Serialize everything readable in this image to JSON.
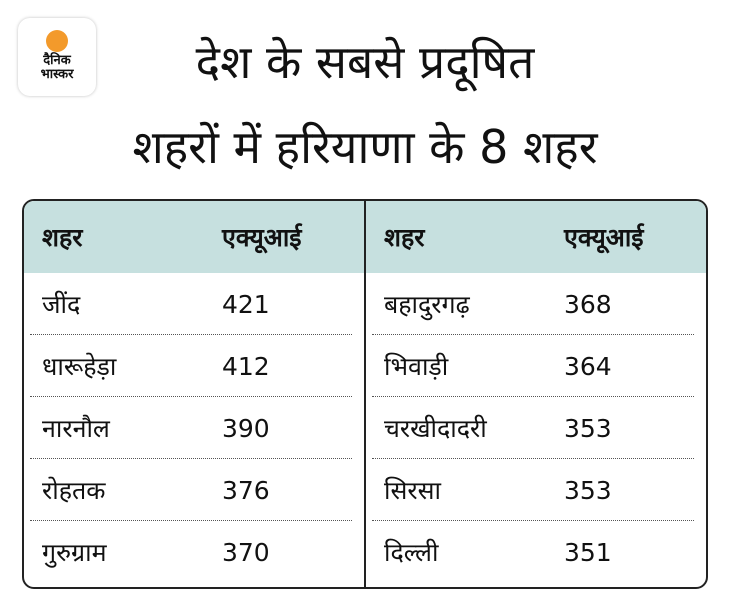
{
  "logo": {
    "line1": "दैनिक",
    "line2": "भास्कर",
    "sun_color": "#f39a2b"
  },
  "title": {
    "line1": "देश के सबसे प्रदूषित",
    "line2": "शहरों में हरियाणा के 8 शहर"
  },
  "table": {
    "header_bg": "#c6e0df",
    "columns": [
      {
        "city_header": "शहर",
        "aqi_header": "एक्यूआई",
        "rows": [
          {
            "city": "जींद",
            "aqi": "421"
          },
          {
            "city": "धारूहेड़ा",
            "aqi": "412"
          },
          {
            "city": "नारनौल",
            "aqi": "390"
          },
          {
            "city": "रोहतक",
            "aqi": "376"
          },
          {
            "city": "गुरुग्राम",
            "aqi": "370"
          }
        ]
      },
      {
        "city_header": "शहर",
        "aqi_header": "एक्यूआई",
        "rows": [
          {
            "city": "बहादुरगढ़",
            "aqi": "368"
          },
          {
            "city": "भिवाड़ी",
            "aqi": "364"
          },
          {
            "city": "चरखीदादरी",
            "aqi": "353"
          },
          {
            "city": "सिरसा",
            "aqi": "353"
          },
          {
            "city": "दिल्ली",
            "aqi": "351"
          }
        ]
      }
    ]
  }
}
